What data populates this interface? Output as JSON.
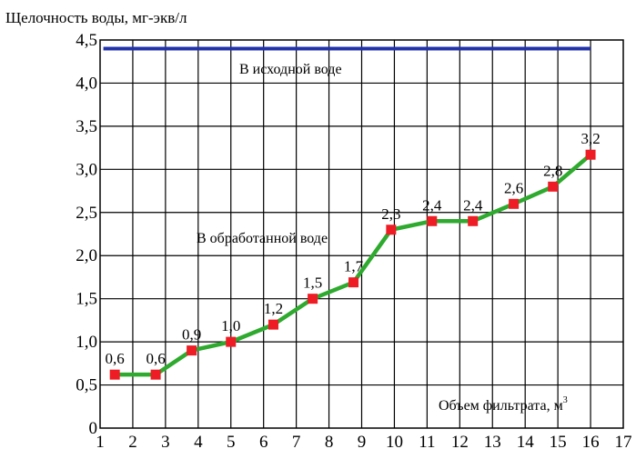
{
  "chart_data": {
    "type": "line",
    "ylabel": "Щелочность воды, мг-экв/л",
    "xlabel": "Объем фильтрата, м",
    "xlabel_sup": "3",
    "xlim": [
      1,
      17
    ],
    "ylim": [
      0,
      4.5
    ],
    "x_ticks": [
      "1",
      "2",
      "3",
      "4",
      "5",
      "6",
      "7",
      "8",
      "9",
      "10",
      "11",
      "12",
      "13",
      "14",
      "15",
      "16",
      "17"
    ],
    "y_ticks": [
      "0",
      "0,5",
      "1,0",
      "1,5",
      "2,0",
      "2,5",
      "3,0",
      "3,5",
      "4,0",
      "4,5"
    ],
    "grid": true,
    "series": [
      {
        "name": "В исходной воде",
        "color": "#2233aa",
        "x": [
          1.1,
          16.0
        ],
        "y": [
          4.4,
          4.4
        ]
      },
      {
        "name": "В обработанной воде",
        "color": "#2eaa2e",
        "marker_color": "#ee1c24",
        "x": [
          1.45,
          2.7,
          3.8,
          5.0,
          6.3,
          7.5,
          8.75,
          9.9,
          11.15,
          12.4,
          13.65,
          14.85,
          16.0
        ],
        "y": [
          0.62,
          0.62,
          0.9,
          1.0,
          1.2,
          1.5,
          1.69,
          2.3,
          2.4,
          2.4,
          2.6,
          2.8,
          3.17
        ],
        "labels": [
          "0,6",
          "0,6",
          "0,9",
          "1,0",
          "1,2",
          "1,5",
          "1,7",
          "2,3",
          "2,4",
          "2,4",
          "2,6",
          "2,8",
          "3,2"
        ]
      }
    ]
  }
}
